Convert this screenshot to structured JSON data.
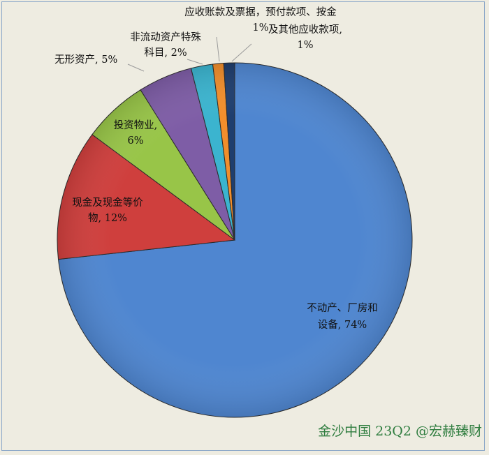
{
  "chart_data": {
    "type": "pie",
    "title": "",
    "slices": [
      {
        "lines": [
          "不动产、厂房和",
          "设备, 74%"
        ],
        "value": 74,
        "color": "#4f86d0"
      },
      {
        "lines": [
          "现金及现金等价",
          "物, 12%"
        ],
        "value": 12,
        "color": "#cf3f3d"
      },
      {
        "lines": [
          "投资物业,",
          "6%"
        ],
        "value": 6,
        "color": "#98c548"
      },
      {
        "lines": [
          "无形资产, 5%"
        ],
        "value": 5,
        "color": "#7e5da6"
      },
      {
        "lines": [
          "非流动资产特殊",
          "科目, 2%"
        ],
        "value": 2,
        "color": "#3bb4cf"
      },
      {
        "lines": [
          "应收账款及票据，预付款项、按金",
          "1%"
        ],
        "value": 1,
        "color": "#f18e2c"
      },
      {
        "lines": [
          "及其他应收款项,",
          "1%"
        ],
        "value": 1,
        "color": "#1f3e6e"
      }
    ],
    "legend": "none"
  },
  "watermark": "金沙中国 23Q2 @宏赫臻财"
}
